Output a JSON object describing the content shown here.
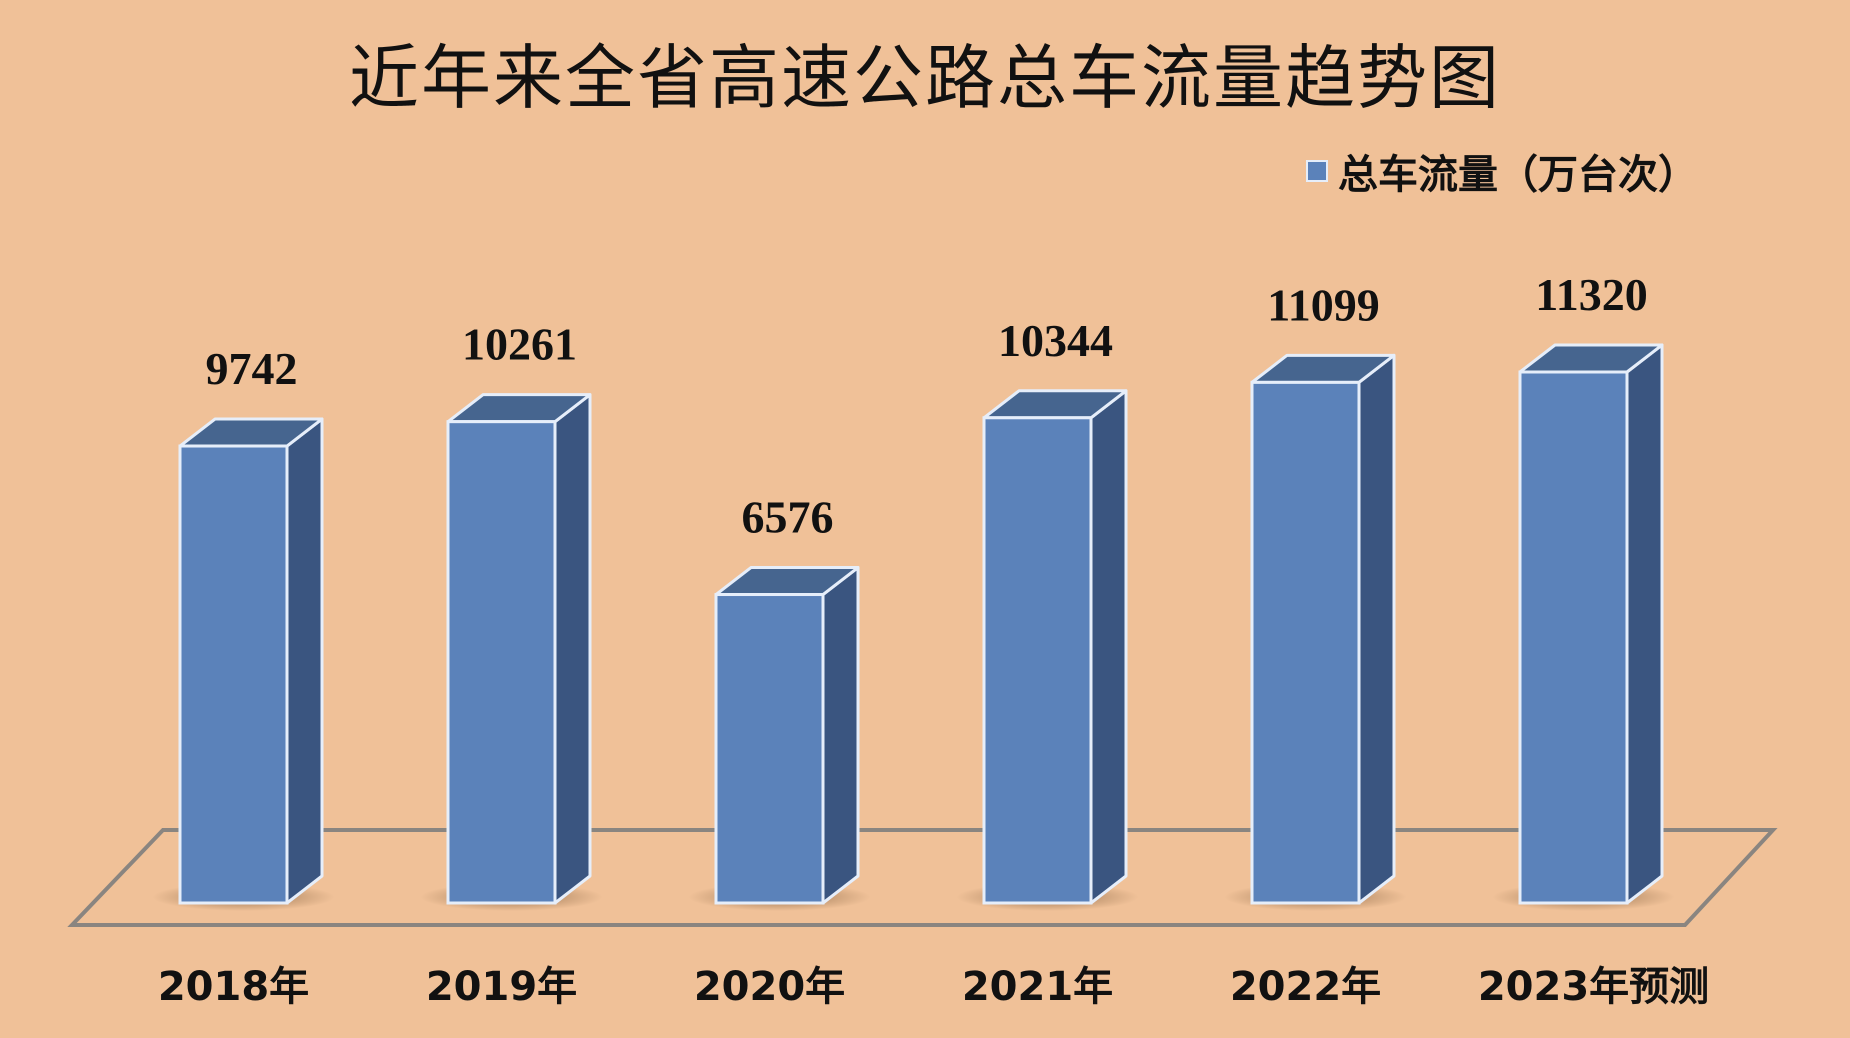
{
  "title": "近年来全省高速公路总车流量趋势图",
  "legend": {
    "label": "总车流量（万台次）",
    "color": "#5B82BA"
  },
  "colors": {
    "background": "#F0C198",
    "bar_front": "#5B82BA",
    "bar_side": "#3A5580",
    "bar_top": "#46658F",
    "bar_outline": "#E6EEFA",
    "floor_line": "#8A8580"
  },
  "chart_data": {
    "type": "bar",
    "style": "3d-column",
    "title": "近年来全省高速公路总车流量趋势图",
    "xlabel": "",
    "ylabel": "",
    "categories": [
      "2018年",
      "2019年",
      "2020年",
      "2021年",
      "2022年",
      "2023年预测"
    ],
    "series": [
      {
        "name": "总车流量（万台次）",
        "values": [
          9742,
          10261,
          6576,
          10344,
          11099,
          11320
        ]
      }
    ],
    "data_labels": [
      "9742",
      "10261",
      "6576",
      "10344",
      "11099",
      "11320"
    ],
    "legend_position": "top-right",
    "grid": false,
    "axis_visible": false
  }
}
